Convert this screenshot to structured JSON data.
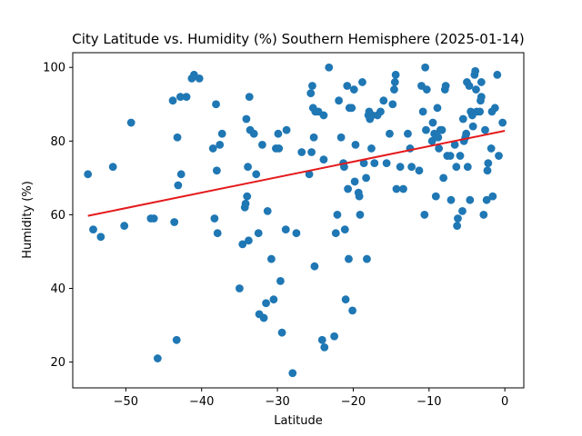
{
  "chart_data": {
    "type": "scatter",
    "title": "City Latitude vs. Humidity (%) Southern Hemisphere (2025-01-14)",
    "xlabel": "Latitude",
    "ylabel": "Humidity (%)",
    "xlim": [
      -57,
      2.5
    ],
    "ylim": [
      13,
      104
    ],
    "xticks": [
      -50,
      -40,
      -30,
      -20,
      -10,
      0
    ],
    "yticks": [
      20,
      40,
      60,
      80,
      100
    ],
    "grid": false,
    "point_color": "#1f77b4",
    "line_color": "#e41a1c",
    "regression_line": {
      "x": [
        -55,
        0
      ],
      "y": [
        59.7,
        82.8
      ]
    },
    "points": [
      [
        -55,
        71
      ],
      [
        -54.3,
        56
      ],
      [
        -53.3,
        54
      ],
      [
        -51.7,
        73
      ],
      [
        -50.2,
        57
      ],
      [
        -49.3,
        85
      ],
      [
        -46.7,
        59
      ],
      [
        -46.3,
        59
      ],
      [
        -45.8,
        21
      ],
      [
        -43.8,
        91
      ],
      [
        -43.6,
        58
      ],
      [
        -43.3,
        26
      ],
      [
        -43.2,
        81
      ],
      [
        -43.1,
        68
      ],
      [
        -42.8,
        92
      ],
      [
        -42.7,
        71
      ],
      [
        -42,
        92
      ],
      [
        -41.3,
        97
      ],
      [
        -41,
        98
      ],
      [
        -40.3,
        97
      ],
      [
        -38.5,
        78
      ],
      [
        -38.3,
        59
      ],
      [
        -38.1,
        90
      ],
      [
        -38,
        72
      ],
      [
        -37.9,
        55
      ],
      [
        -37.6,
        79
      ],
      [
        -37.3,
        82
      ],
      [
        -35,
        40
      ],
      [
        -34.6,
        52
      ],
      [
        -34.3,
        62
      ],
      [
        -34.2,
        63
      ],
      [
        -34.1,
        86
      ],
      [
        -34,
        65
      ],
      [
        -33.9,
        73
      ],
      [
        -33.8,
        53
      ],
      [
        -33.7,
        92
      ],
      [
        -33.6,
        83
      ],
      [
        -33.1,
        82
      ],
      [
        -32.8,
        71
      ],
      [
        -32.5,
        55
      ],
      [
        -32.4,
        33
      ],
      [
        -32,
        79
      ],
      [
        -31.8,
        32
      ],
      [
        -31.5,
        36
      ],
      [
        -31.3,
        61
      ],
      [
        -30.8,
        48
      ],
      [
        -30.5,
        37
      ],
      [
        -30.2,
        78
      ],
      [
        -29.9,
        82
      ],
      [
        -29.8,
        78
      ],
      [
        -29.6,
        42
      ],
      [
        -29.4,
        28
      ],
      [
        -28.9,
        56
      ],
      [
        -28.8,
        83
      ],
      [
        -28,
        17
      ],
      [
        -27.5,
        55
      ],
      [
        -26.8,
        77
      ],
      [
        -25.8,
        71
      ],
      [
        -25.6,
        93
      ],
      [
        -25.5,
        77
      ],
      [
        -25.4,
        95
      ],
      [
        -25.3,
        89
      ],
      [
        -25.2,
        81
      ],
      [
        -25.1,
        46
      ],
      [
        -25,
        88
      ],
      [
        -24.6,
        88
      ],
      [
        -24.1,
        26
      ],
      [
        -23.8,
        24
      ],
      [
        -23.9,
        75
      ],
      [
        -23.9,
        87
      ],
      [
        -23.2,
        100
      ],
      [
        -22.5,
        27
      ],
      [
        -22.3,
        55
      ],
      [
        -22.1,
        60
      ],
      [
        -21.9,
        91
      ],
      [
        -21.6,
        81
      ],
      [
        -21.3,
        74
      ],
      [
        -21.2,
        73
      ],
      [
        -21.1,
        56
      ],
      [
        -21,
        37
      ],
      [
        -20.8,
        95
      ],
      [
        -20.7,
        67
      ],
      [
        -20.6,
        48
      ],
      [
        -20.5,
        89
      ],
      [
        -20.2,
        89
      ],
      [
        -20.1,
        34
      ],
      [
        -19.9,
        94
      ],
      [
        -19.8,
        69
      ],
      [
        -19.7,
        79
      ],
      [
        -19.3,
        66
      ],
      [
        -19.2,
        65
      ],
      [
        -19.1,
        60
      ],
      [
        -18.8,
        96
      ],
      [
        -18.6,
        74
      ],
      [
        -18.3,
        70
      ],
      [
        -18.2,
        48
      ],
      [
        -18,
        87
      ],
      [
        -17.9,
        88
      ],
      [
        -17.8,
        86
      ],
      [
        -17.6,
        78
      ],
      [
        -17.5,
        87
      ],
      [
        -17.2,
        74
      ],
      [
        -16.8,
        87
      ],
      [
        -16.4,
        88
      ],
      [
        -16,
        91
      ],
      [
        -15.6,
        74
      ],
      [
        -15.2,
        82
      ],
      [
        -14.8,
        90
      ],
      [
        -14.6,
        94
      ],
      [
        -14.5,
        96
      ],
      [
        -14.4,
        98
      ],
      [
        -14.3,
        67
      ],
      [
        -13.8,
        73
      ],
      [
        -13.4,
        67
      ],
      [
        -12.8,
        82
      ],
      [
        -12.5,
        78
      ],
      [
        -12.3,
        73
      ],
      [
        -11.3,
        72
      ],
      [
        -11,
        95
      ],
      [
        -10.8,
        88
      ],
      [
        -10.6,
        60
      ],
      [
        -10.5,
        100
      ],
      [
        -10.4,
        83
      ],
      [
        -10.3,
        94
      ],
      [
        -9.6,
        80
      ],
      [
        -9.5,
        85
      ],
      [
        -9.3,
        82
      ],
      [
        -9.1,
        65
      ],
      [
        -8.9,
        89
      ],
      [
        -8.8,
        81
      ],
      [
        -8.7,
        78
      ],
      [
        -8.5,
        83
      ],
      [
        -8.3,
        83
      ],
      [
        -8.1,
        70
      ],
      [
        -7.9,
        94
      ],
      [
        -7.8,
        95
      ],
      [
        -7.6,
        76
      ],
      [
        -7.2,
        76
      ],
      [
        -7.1,
        64
      ],
      [
        -6.6,
        79
      ],
      [
        -6.4,
        73
      ],
      [
        -6.3,
        57
      ],
      [
        -6.2,
        59
      ],
      [
        -5.9,
        76
      ],
      [
        -5.6,
        61
      ],
      [
        -5.5,
        86
      ],
      [
        -5.4,
        80
      ],
      [
        -5.2,
        81
      ],
      [
        -5.1,
        82
      ],
      [
        -5,
        96
      ],
      [
        -4.9,
        73
      ],
      [
        -4.7,
        95
      ],
      [
        -4.6,
        64
      ],
      [
        -4.5,
        88
      ],
      [
        -4.3,
        87
      ],
      [
        -4.2,
        84
      ],
      [
        -4,
        98
      ],
      [
        -3.9,
        99
      ],
      [
        -3.8,
        94
      ],
      [
        -3.7,
        88
      ],
      [
        -3.3,
        88
      ],
      [
        -3.2,
        91
      ],
      [
        -3.1,
        92
      ],
      [
        -3.1,
        96
      ],
      [
        -2.8,
        60
      ],
      [
        -2.6,
        83
      ],
      [
        -2.4,
        64
      ],
      [
        -2.3,
        72
      ],
      [
        -2.2,
        74
      ],
      [
        -1.8,
        78
      ],
      [
        -1.7,
        88
      ],
      [
        -1.6,
        65
      ],
      [
        -1.3,
        89
      ],
      [
        -1,
        98
      ],
      [
        -0.8,
        76
      ],
      [
        -0.3,
        85
      ]
    ]
  }
}
